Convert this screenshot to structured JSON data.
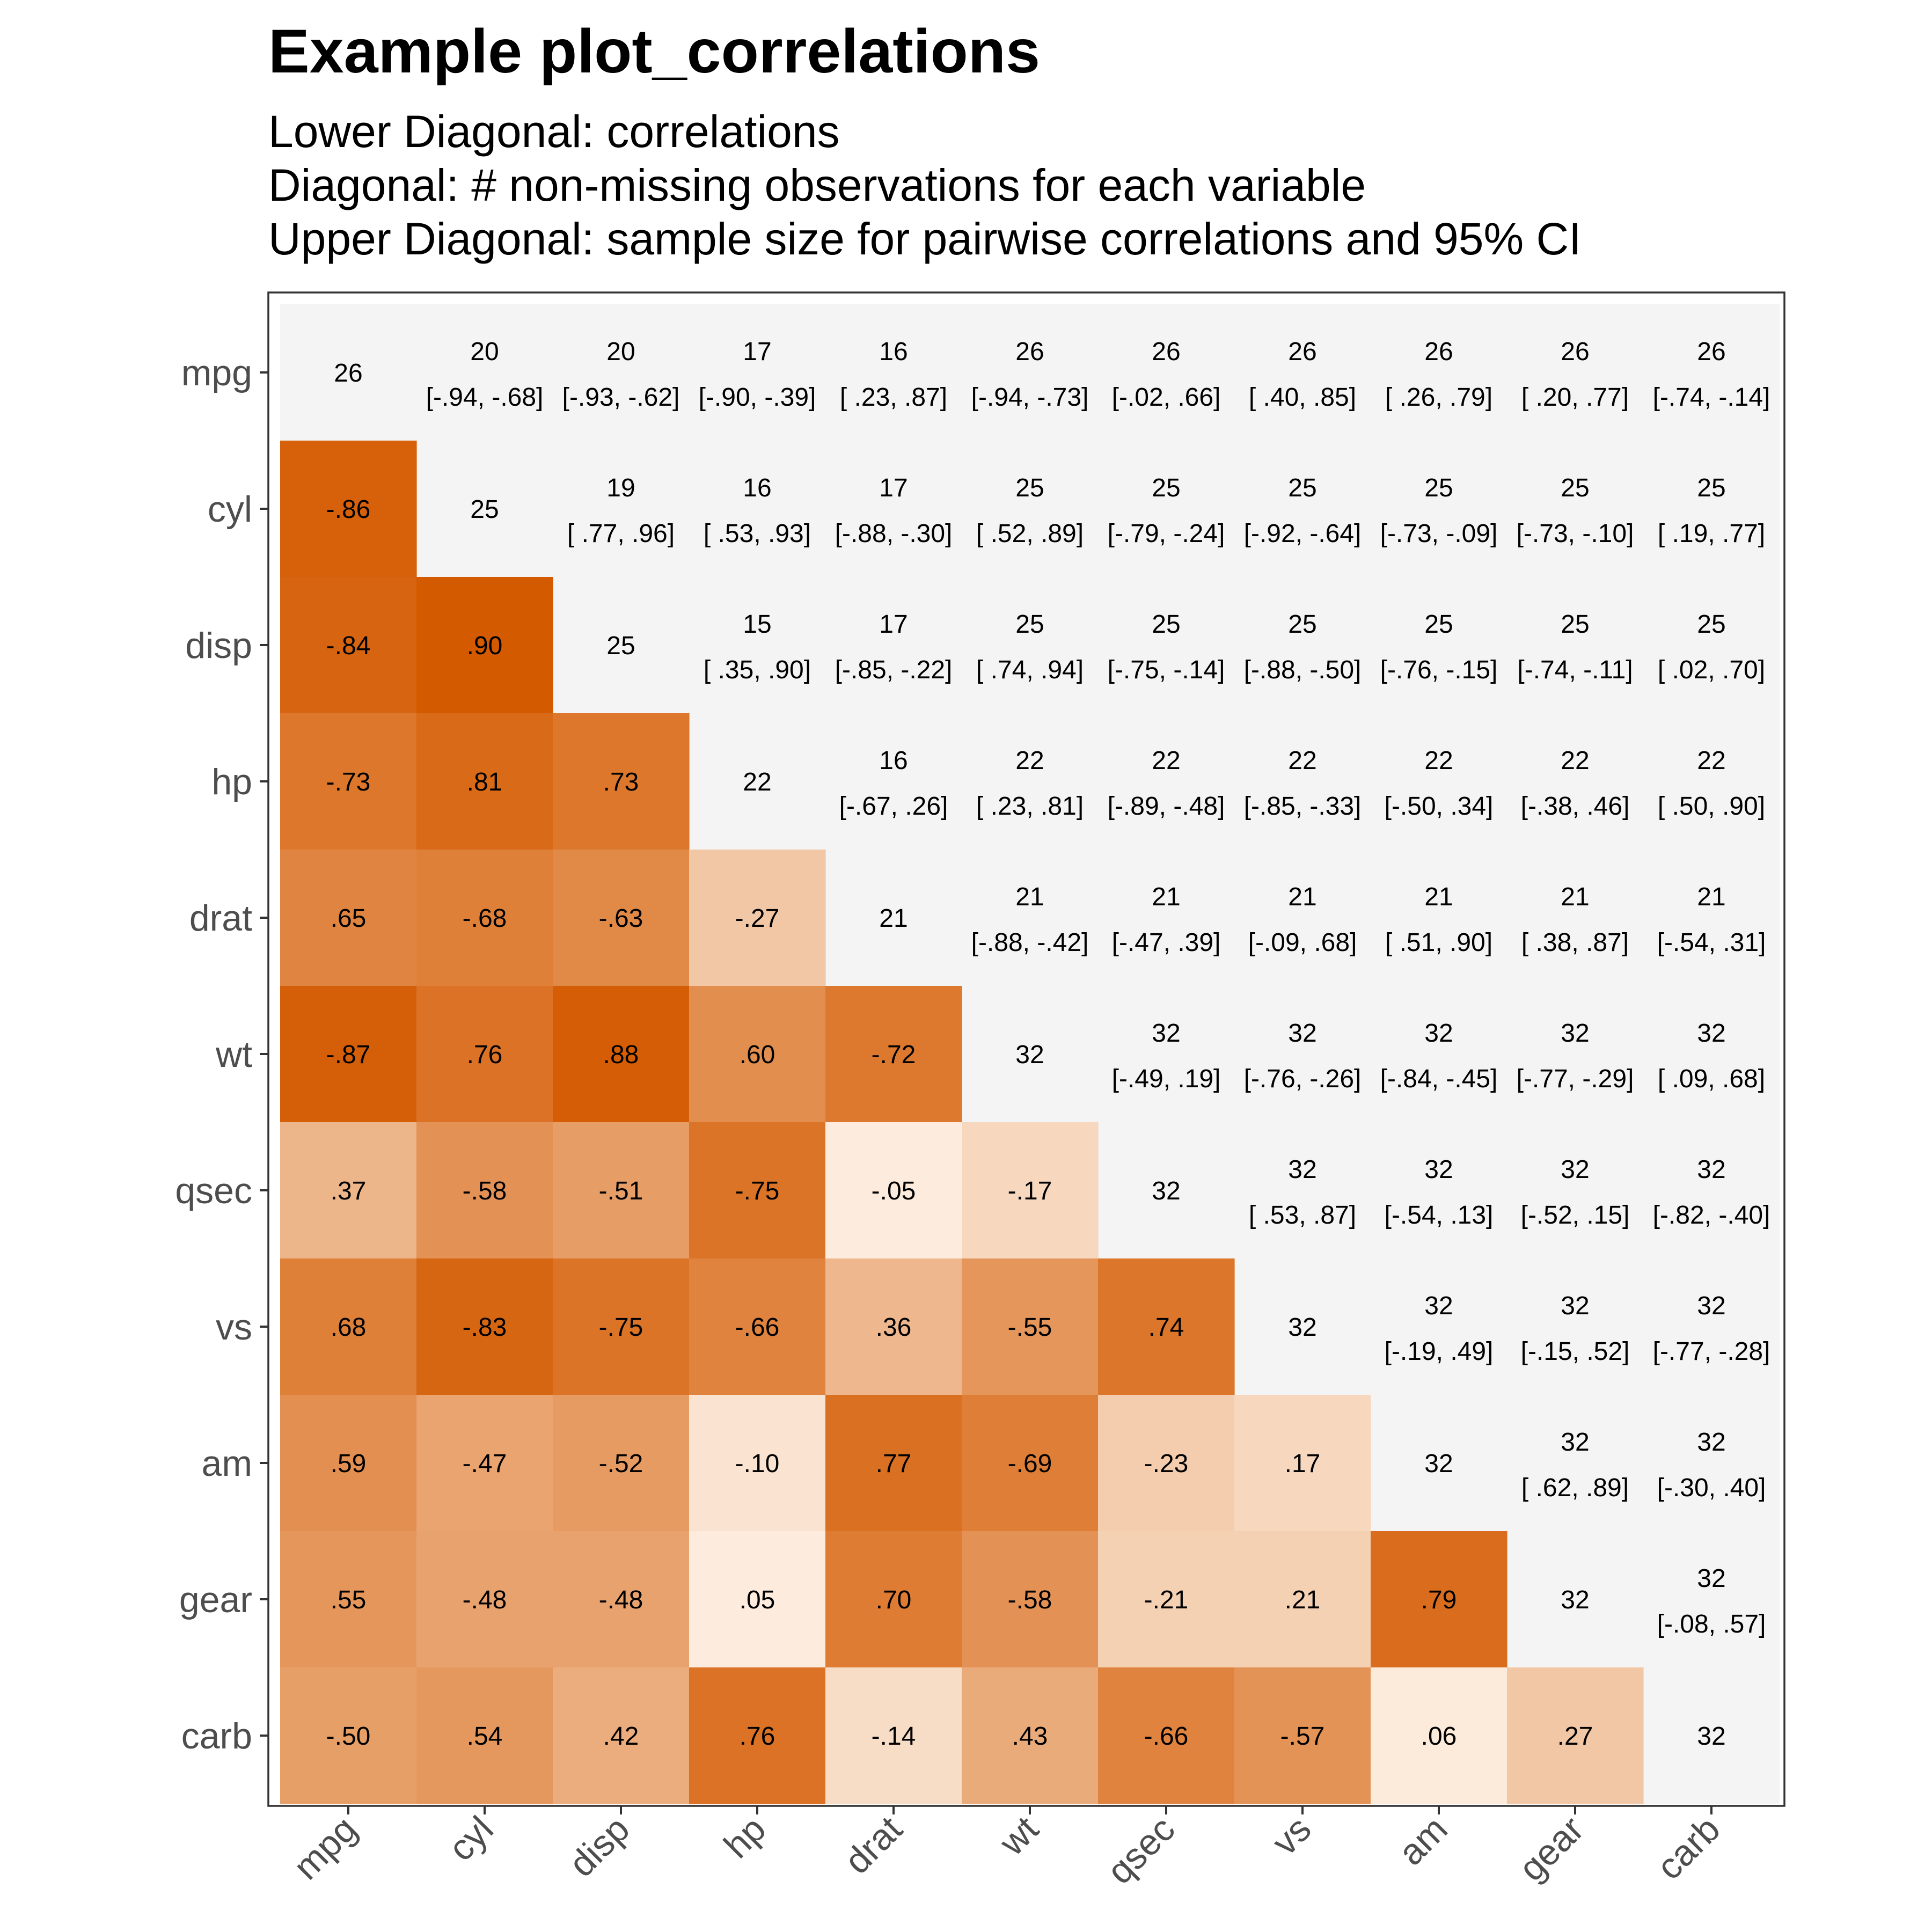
{
  "title": "Example plot_correlations",
  "subtitle": [
    "Lower Diagonal: correlations",
    "Diagonal: # non-missing observations for each variable",
    "Upper Diagonal: sample size for pairwise correlations and 95% CI"
  ],
  "chart_data": {
    "type": "heatmap",
    "variables": [
      "mpg",
      "cyl",
      "disp",
      "hp",
      "drat",
      "wt",
      "qsec",
      "vs",
      "am",
      "gear",
      "carb"
    ],
    "x_tick_labels": [
      "mpg",
      "cyl",
      "disp",
      "hp",
      "drat",
      "wt",
      "qsec",
      "vs",
      "am",
      "gear",
      "carb"
    ],
    "y_tick_labels": [
      "mpg",
      "cyl",
      "disp",
      "hp",
      "drat",
      "wt",
      "qsec",
      "vs",
      "am",
      "gear",
      "carb"
    ],
    "lower_correlations": [
      [
        "-.86"
      ],
      [
        "-.84",
        ".90"
      ],
      [
        "-.73",
        ".81",
        ".73"
      ],
      [
        ".65",
        "-.68",
        "-.63",
        "-.27"
      ],
      [
        "-.87",
        ".76",
        ".88",
        ".60",
        "-.72"
      ],
      [
        ".37",
        "-.58",
        "-.51",
        "-.75",
        "-.05",
        "-.17"
      ],
      [
        ".68",
        "-.83",
        "-.75",
        "-.66",
        ".36",
        "-.55",
        ".74"
      ],
      [
        ".59",
        "-.47",
        "-.52",
        "-.10",
        ".77",
        "-.69",
        "-.23",
        ".17"
      ],
      [
        ".55",
        "-.48",
        "-.48",
        ".05",
        ".70",
        "-.58",
        "-.21",
        ".21",
        ".79"
      ],
      [
        "-.50",
        ".54",
        ".42",
        ".76",
        "-.14",
        ".43",
        "-.66",
        "-.57",
        ".06",
        ".27"
      ]
    ],
    "diagonal_n": [
      "26",
      "25",
      "25",
      "22",
      "21",
      "32",
      "32",
      "32",
      "32",
      "32",
      "32"
    ],
    "upper_n": [
      [
        "20",
        "20",
        "17",
        "16",
        "26",
        "26",
        "26",
        "26",
        "26",
        "26"
      ],
      [
        "19",
        "16",
        "17",
        "25",
        "25",
        "25",
        "25",
        "25",
        "25"
      ],
      [
        "15",
        "17",
        "25",
        "25",
        "25",
        "25",
        "25",
        "25"
      ],
      [
        "16",
        "22",
        "22",
        "22",
        "22",
        "22",
        "22"
      ],
      [
        "21",
        "21",
        "21",
        "21",
        "21",
        "21"
      ],
      [
        "32",
        "32",
        "32",
        "32",
        "32"
      ],
      [
        "32",
        "32",
        "32",
        "32"
      ],
      [
        "32",
        "32",
        "32"
      ],
      [
        "32",
        "32"
      ],
      [
        "32"
      ]
    ],
    "upper_ci": [
      [
        "[-.94, -.68]",
        "[-.93, -.62]",
        "[-.90, -.39]",
        "[ .23,  .87]",
        "[-.94, -.73]",
        "[-.02,  .66]",
        "[ .40,  .85]",
        "[ .26,  .79]",
        "[ .20,  .77]",
        "[-.74, -.14]"
      ],
      [
        "[ .77,  .96]",
        "[ .53,  .93]",
        "[-.88, -.30]",
        "[ .52,  .89]",
        "[-.79, -.24]",
        "[-.92, -.64]",
        "[-.73, -.09]",
        "[-.73, -.10]",
        "[ .19,  .77]"
      ],
      [
        "[ .35,  .90]",
        "[-.85, -.22]",
        "[ .74,  .94]",
        "[-.75, -.14]",
        "[-.88, -.50]",
        "[-.76, -.15]",
        "[-.74, -.11]",
        "[ .02,  .70]"
      ],
      [
        "[-.67,  .26]",
        "[ .23,  .81]",
        "[-.89, -.48]",
        "[-.85, -.33]",
        "[-.50,  .34]",
        "[-.38,  .46]",
        "[ .50,  .90]"
      ],
      [
        "[-.88, -.42]",
        "[-.47,  .39]",
        "[-.09,  .68]",
        "[ .51,  .90]",
        "[ .38,  .87]",
        "[-.54,  .31]"
      ],
      [
        "[-.49,  .19]",
        "[-.76, -.26]",
        "[-.84, -.45]",
        "[-.77, -.29]",
        "[ .09,  .68]"
      ],
      [
        "[ .53,  .87]",
        "[-.54,  .13]",
        "[-.52,  .15]",
        "[-.82, -.40]"
      ],
      [
        "[-.19,  .49]",
        "[-.15,  .52]",
        "[-.77, -.28]"
      ],
      [
        "[ .62,  .89]",
        "[-.30,  .40]"
      ],
      [
        "[-.08,  .57]"
      ]
    ],
    "colors": {
      "low": "#fff5eb",
      "high": "#d45a00",
      "panel_background": "#f4f4f4",
      "text": "#000000",
      "axis_text": "#4d4d4d"
    }
  }
}
